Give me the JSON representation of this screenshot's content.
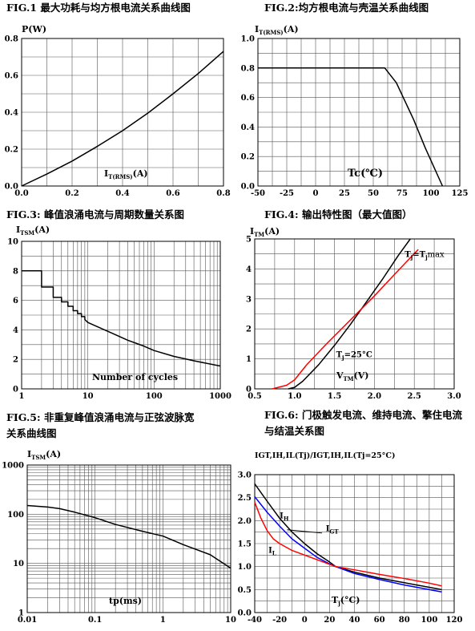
{
  "chart_data": [
    {
      "id": "fig1",
      "type": "line",
      "title": "FIG.1  最大功耗与均方根电流关系曲线图",
      "ylabel": {
        "main": "P(W)",
        "sub": ""
      },
      "xlabel": {
        "main": "I",
        "sub": "T(RMS)",
        "tail": "(A)"
      },
      "xlim": [
        0,
        0.8
      ],
      "ylim": [
        0,
        0.8
      ],
      "xscale": "linear",
      "yscale": "linear",
      "xticks": [
        0,
        0.2,
        0.4,
        0.6,
        0.8
      ],
      "xtick_labels": [
        "0.0",
        "0.2",
        "0.4",
        "0.6",
        "0.8"
      ],
      "yticks": [
        0,
        0.2,
        0.4,
        0.6,
        0.8
      ],
      "ytick_labels": [
        "0.0",
        "0.2",
        "0.4",
        "0.6",
        "0.8"
      ],
      "grid": true,
      "series": [
        {
          "color": "#000000",
          "x": [
            0,
            0.1,
            0.2,
            0.3,
            0.4,
            0.5,
            0.6,
            0.7,
            0.8
          ],
          "y": [
            0,
            0.065,
            0.135,
            0.215,
            0.3,
            0.395,
            0.5,
            0.61,
            0.73
          ]
        }
      ],
      "annotations": []
    },
    {
      "id": "fig2",
      "type": "line",
      "title": "FIG.2:均方根电流与壳温关系曲线图",
      "ylabel": {
        "main": "I",
        "sub": "T(RMS)",
        "tail": "(A)"
      },
      "xlabel": {
        "main": "Tc(℃)",
        "sub": ""
      },
      "xlim": [
        -50,
        125
      ],
      "ylim": [
        0,
        1.0
      ],
      "xscale": "linear",
      "yscale": "linear",
      "xticks": [
        -50,
        -25,
        0,
        25,
        50,
        75,
        100,
        125
      ],
      "xtick_labels": [
        "-50",
        "-25",
        "0",
        "25",
        "50",
        "75",
        "100",
        "125"
      ],
      "yticks": [
        0,
        0.2,
        0.4,
        0.6,
        0.8,
        1.0
      ],
      "ytick_labels": [
        "0.0",
        "0.2",
        "0.4",
        "0.6",
        "0.8",
        "1.0"
      ],
      "grid": true,
      "series": [
        {
          "color": "#000000",
          "x": [
            -50,
            60,
            70,
            85,
            95,
            110
          ],
          "y": [
            0.8,
            0.8,
            0.7,
            0.45,
            0.26,
            0
          ]
        }
      ],
      "annotations": []
    },
    {
      "id": "fig3",
      "type": "line",
      "title": "FIG.3:  峰值浪涌电流与周期数量关系图",
      "ylabel": {
        "main": "I",
        "sub": "TSM",
        "tail": "(A)"
      },
      "xlabel": {
        "main": "Number of cycles",
        "sub": ""
      },
      "xlim": [
        1,
        1000
      ],
      "ylim": [
        0,
        10
      ],
      "xscale": "log",
      "yscale": "linear",
      "xticks": [
        1,
        10,
        100,
        1000
      ],
      "xtick_labels": [
        "1",
        "10",
        "100",
        "1000"
      ],
      "yticks": [
        0,
        2,
        4,
        6,
        8,
        10
      ],
      "ytick_labels": [
        "0",
        "2",
        "4",
        "6",
        "8",
        "10"
      ],
      "grid": true,
      "series": [
        {
          "color": "#000000",
          "x": [
            1,
            2,
            2,
            3,
            3,
            4,
            4,
            5,
            5,
            6,
            6,
            7,
            7,
            8,
            8,
            9,
            9,
            10,
            20,
            40,
            70,
            100,
            200,
            400,
            1000
          ],
          "y": [
            8,
            8,
            6.9,
            6.9,
            6.2,
            6.2,
            5.9,
            5.9,
            5.6,
            5.6,
            5.3,
            5.3,
            5.1,
            5.1,
            4.9,
            4.9,
            4.7,
            4.5,
            3.9,
            3.3,
            2.9,
            2.6,
            2.2,
            1.9,
            1.55
          ]
        }
      ],
      "annotations": []
    },
    {
      "id": "fig4",
      "type": "line",
      "title": "FIG.4:  输出特性图（最大值图）",
      "ylabel": {
        "main": "I",
        "sub": "TM",
        "tail": "(A)"
      },
      "xlabel": {
        "main": "V",
        "sub": "TM",
        "tail": "(V)"
      },
      "xlim": [
        0.5,
        3.0
      ],
      "ylim": [
        0,
        5
      ],
      "xscale": "linear",
      "yscale": "linear",
      "xticks": [
        0.5,
        1.0,
        1.5,
        2.0,
        2.5,
        3.0
      ],
      "xtick_labels": [
        "0.5",
        "1.0",
        "1.5",
        "2.0",
        "2.5",
        "3.0"
      ],
      "yticks": [
        0,
        1,
        2,
        3,
        4,
        5
      ],
      "ytick_labels": [
        "0",
        "1",
        "2",
        "3",
        "4",
        "5"
      ],
      "grid": true,
      "series": [
        {
          "color": "#000000",
          "x": [
            0.92,
            1.0,
            1.1,
            1.3,
            1.5,
            1.7,
            1.9,
            2.1,
            2.3,
            2.45
          ],
          "y": [
            0,
            0.05,
            0.25,
            0.8,
            1.45,
            2.15,
            2.9,
            3.65,
            4.45,
            5.0
          ]
        },
        {
          "color": "#ff0000",
          "x": [
            0.72,
            0.9,
            1.0,
            1.15,
            1.4,
            1.7,
            2.0,
            2.3,
            2.55
          ],
          "y": [
            0,
            0.12,
            0.3,
            0.8,
            1.5,
            2.3,
            3.1,
            3.95,
            4.65
          ]
        }
      ],
      "annotations": [
        {
          "text": "T",
          "sub": "j",
          "tail": "=T",
          "sub2": "j",
          "tail2": "max",
          "x": 2.38,
          "y": 4.4
        },
        {
          "text": "T",
          "sub": "j",
          "tail": "=25°C",
          "x": 1.52,
          "y": 1.05
        }
      ]
    },
    {
      "id": "fig5",
      "type": "line",
      "title": "FIG.5:  非重复峰值浪涌电流与正弦波脉宽",
      "title2": "关系曲线图",
      "ylabel": {
        "main": "I",
        "sub": "TSM",
        "tail": "(A)"
      },
      "xlabel": {
        "main": "tp(ms)",
        "sub": ""
      },
      "xlim": [
        0.01,
        10
      ],
      "ylim": [
        1,
        1000
      ],
      "xscale": "log",
      "yscale": "log",
      "xticks": [
        0.01,
        0.1,
        1,
        10
      ],
      "xtick_labels": [
        "0.01",
        "0.1",
        "1",
        "10"
      ],
      "yticks": [
        1,
        10,
        100,
        1000
      ],
      "ytick_labels": [
        "1",
        "10",
        "100",
        "1000"
      ],
      "grid": true,
      "series": [
        {
          "color": "#000000",
          "x": [
            0.01,
            0.02,
            0.03,
            0.05,
            0.1,
            0.2,
            0.5,
            1,
            2,
            5,
            10
          ],
          "y": [
            150,
            140,
            130,
            110,
            85,
            62,
            45,
            36,
            24,
            15,
            8
          ]
        }
      ],
      "annotations": []
    },
    {
      "id": "fig6",
      "type": "line",
      "title": "FIG.6:  门极触发电流、维持电流、擎住电流",
      "title2": "与结温关系图",
      "ylabel": {
        "main": "IGT,IH,IL(Tj)/IGT,IH,IL(Tj=25°C)",
        "sub": ""
      },
      "xlabel": {
        "main": "T",
        "sub": "j",
        "tail": "(°C)"
      },
      "xlim": [
        -40,
        120
      ],
      "ylim": [
        0,
        3.0
      ],
      "xscale": "linear",
      "yscale": "linear",
      "xticks": [
        -40,
        -20,
        0,
        20,
        40,
        60,
        80,
        100,
        120
      ],
      "xtick_labels": [
        "-40",
        "-20",
        "0",
        "20",
        "40",
        "60",
        "80",
        "100",
        "120"
      ],
      "yticks": [
        0,
        0.5,
        1.0,
        1.5,
        2.0,
        2.5,
        3.0
      ],
      "ytick_labels": [
        "0.0",
        "0.5",
        "1.0",
        "1.5",
        "2.0",
        "2.5",
        "3.0"
      ],
      "grid": true,
      "series": [
        {
          "color": "#000000",
          "x": [
            -40,
            -30,
            -20,
            -10,
            0,
            10,
            20,
            25,
            40,
            60,
            80,
            100,
            110
          ],
          "y": [
            2.8,
            2.42,
            2.05,
            1.75,
            1.5,
            1.28,
            1.1,
            1.0,
            0.88,
            0.75,
            0.65,
            0.55,
            0.5
          ]
        },
        {
          "color": "#0000ff",
          "x": [
            -40,
            -30,
            -20,
            -10,
            0,
            10,
            20,
            25,
            40,
            60,
            80,
            100,
            110
          ],
          "y": [
            2.52,
            2.18,
            1.88,
            1.6,
            1.4,
            1.2,
            1.06,
            1.0,
            0.85,
            0.72,
            0.6,
            0.5,
            0.45
          ]
        },
        {
          "color": "#ff0000",
          "x": [
            -40,
            -35,
            -30,
            -25,
            -20,
            -10,
            0,
            10,
            20,
            25,
            40,
            60,
            80,
            100,
            110
          ],
          "y": [
            2.4,
            2.05,
            1.78,
            1.6,
            1.5,
            1.35,
            1.25,
            1.15,
            1.05,
            1.0,
            0.93,
            0.83,
            0.74,
            0.64,
            0.58
          ]
        }
      ],
      "annotations": [
        {
          "text": "I",
          "sub": "H",
          "x": -20,
          "y": 2.05
        },
        {
          "text": "I",
          "sub": "GT",
          "x": 17,
          "y": 1.77
        },
        {
          "text": "I",
          "sub": "L",
          "x": -29,
          "y": 1.3
        }
      ]
    }
  ]
}
